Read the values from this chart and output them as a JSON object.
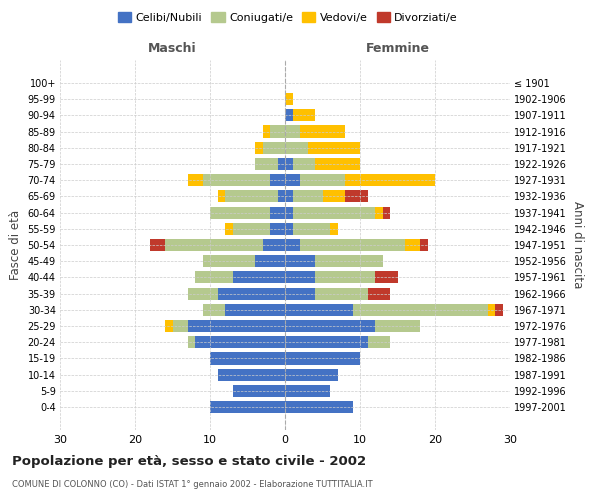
{
  "age_groups": [
    "100+",
    "95-99",
    "90-94",
    "85-89",
    "80-84",
    "75-79",
    "70-74",
    "65-69",
    "60-64",
    "55-59",
    "50-54",
    "45-49",
    "40-44",
    "35-39",
    "30-34",
    "25-29",
    "20-24",
    "15-19",
    "10-14",
    "5-9",
    "0-4"
  ],
  "birth_years": [
    "≤ 1901",
    "1902-1906",
    "1907-1911",
    "1912-1916",
    "1917-1921",
    "1922-1926",
    "1927-1931",
    "1932-1936",
    "1937-1941",
    "1942-1946",
    "1947-1951",
    "1952-1956",
    "1957-1961",
    "1962-1966",
    "1967-1971",
    "1972-1976",
    "1977-1981",
    "1982-1986",
    "1987-1991",
    "1992-1996",
    "1997-2001"
  ],
  "males": {
    "celibi": [
      0,
      0,
      0,
      0,
      0,
      1,
      2,
      1,
      2,
      2,
      3,
      4,
      7,
      9,
      8,
      13,
      12,
      10,
      9,
      7,
      10
    ],
    "coniugati": [
      0,
      0,
      0,
      2,
      3,
      3,
      9,
      7,
      8,
      5,
      13,
      7,
      5,
      4,
      3,
      2,
      1,
      0,
      0,
      0,
      0
    ],
    "vedovi": [
      0,
      0,
      0,
      1,
      1,
      0,
      2,
      1,
      0,
      1,
      0,
      0,
      0,
      0,
      0,
      1,
      0,
      0,
      0,
      0,
      0
    ],
    "divorziati": [
      0,
      0,
      0,
      0,
      0,
      0,
      0,
      0,
      0,
      0,
      2,
      0,
      0,
      0,
      0,
      0,
      0,
      0,
      0,
      0,
      0
    ]
  },
  "females": {
    "nubili": [
      0,
      0,
      1,
      0,
      0,
      1,
      2,
      1,
      1,
      1,
      2,
      4,
      4,
      4,
      9,
      12,
      11,
      10,
      7,
      6,
      9
    ],
    "coniugate": [
      0,
      0,
      0,
      2,
      3,
      3,
      6,
      4,
      11,
      5,
      14,
      9,
      8,
      7,
      18,
      6,
      3,
      0,
      0,
      0,
      0
    ],
    "vedove": [
      0,
      1,
      3,
      6,
      7,
      6,
      12,
      3,
      1,
      1,
      2,
      0,
      0,
      0,
      1,
      0,
      0,
      0,
      0,
      0,
      0
    ],
    "divorziate": [
      0,
      0,
      0,
      0,
      0,
      0,
      0,
      3,
      1,
      0,
      1,
      0,
      3,
      3,
      1,
      0,
      0,
      0,
      0,
      0,
      0
    ]
  },
  "colors": {
    "celibi_nubili": "#4472c4",
    "coniugati": "#b5c98e",
    "vedovi": "#ffc000",
    "divorziati": "#c0392b"
  },
  "xlim": [
    -30,
    30
  ],
  "xticks": [
    -30,
    -20,
    -10,
    0,
    10,
    20,
    30
  ],
  "xticklabels": [
    "30",
    "20",
    "10",
    "0",
    "10",
    "20",
    "30"
  ],
  "title": "Popolazione per età, sesso e stato civile - 2002",
  "subtitle": "COMUNE DI COLONNO (CO) - Dati ISTAT 1° gennaio 2002 - Elaborazione TUTTITALIA.IT",
  "ylabel_left": "Fasce di età",
  "ylabel_right": "Anni di nascita",
  "label_maschi": "Maschi",
  "label_femmine": "Femmine",
  "legend_labels": [
    "Celibi/Nubili",
    "Coniugati/e",
    "Vedovi/e",
    "Divorziati/e"
  ],
  "bg_color": "#ffffff",
  "grid_color": "#cccccc"
}
